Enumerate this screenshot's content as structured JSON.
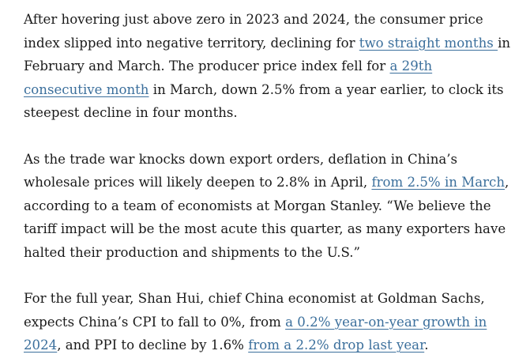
{
  "article": {
    "paragraphs": [
      {
        "segments": [
          {
            "type": "text",
            "text": "After hovering just above zero in 2023 and 2024, the consumer price index slipped into negative territory, declining for "
          },
          {
            "type": "link",
            "text": "two straight months "
          },
          {
            "type": "text",
            "text": "in February and March. The producer price index fell for "
          },
          {
            "type": "link",
            "text": "a 29th consecutive month"
          },
          {
            "type": "text",
            "text": " in March, down 2.5% from a year earlier, to clock its steepest decline in four months."
          }
        ]
      },
      {
        "segments": [
          {
            "type": "text",
            "text": "As the trade war knocks down export orders, deflation in China’s wholesale prices will likely deepen to 2.8% in April, "
          },
          {
            "type": "link",
            "text": "from 2.5% in March"
          },
          {
            "type": "text",
            "text": ", according to a team of economists at Morgan Stanley. “We believe the tariff impact will be the most acute this quarter, as many exporters have halted their production and shipments to the U.S.”"
          }
        ]
      },
      {
        "segments": [
          {
            "type": "text",
            "text": "For the full year, Shan Hui, chief China economist at Goldman Sachs, expects China’s CPI to fall to 0%, from "
          },
          {
            "type": "link",
            "text": "a 0.2% year-on-year growth in 2024"
          },
          {
            "type": "text",
            "text": ", and PPI to decline by 1.6% "
          },
          {
            "type": "link",
            "text": "from a 2.2% drop last year"
          },
          {
            "type": "text",
            "text": "."
          }
        ]
      }
    ]
  }
}
